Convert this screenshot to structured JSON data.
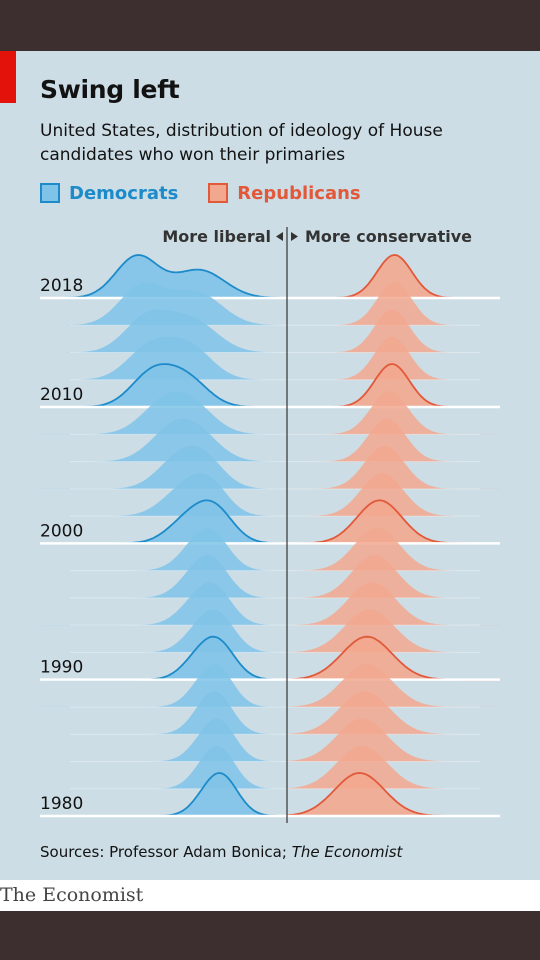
{
  "header": {
    "title": "Swing left",
    "subtitle": "United States, distribution of ideology of House candidates who won their primaries"
  },
  "legend": {
    "democrats": "Democrats",
    "republicans": "Republicans"
  },
  "source": {
    "prefix": "Sources: Professor Adam Bonica; ",
    "publication": "The Economist"
  },
  "brand": "The Economist",
  "colors": {
    "dem_fill": "#7fc3e8",
    "dem_line": "#1d8bc9",
    "rep_fill": "#f2a88f",
    "rep_line": "#e2593a",
    "background": "#ccdde6"
  },
  "chart_data": {
    "type": "area",
    "subtype": "ridgeline",
    "axis_left_label": "More liberal",
    "axis_right_label": "More conservative",
    "x_range": [
      -1,
      1
    ],
    "x_center": 0,
    "year_labels": [
      "2018",
      "2010",
      "2000",
      "1990",
      "1980"
    ],
    "years": [
      2018,
      2016,
      2014,
      2012,
      2010,
      2008,
      2006,
      2004,
      2002,
      2000,
      1998,
      1996,
      1994,
      1992,
      1990,
      1988,
      1986,
      1984,
      1982,
      1980
    ],
    "series": [
      {
        "name": "Democrats",
        "components": [
          {
            "center": [
              -0.6,
              -0.58,
              -0.56,
              -0.55,
              -0.54,
              -0.5,
              -0.47,
              -0.44,
              -0.42,
              -0.4,
              -0.38,
              -0.38,
              -0.38,
              -0.37,
              -0.37,
              -0.36,
              -0.35,
              -0.35,
              -0.34,
              -0.33
            ],
            "sd": [
              0.085,
              0.09,
              0.09,
              0.09,
              0.085,
              0.09,
              0.09,
              0.085,
              0.085,
              0.08,
              0.07,
              0.07,
              0.07,
              0.065,
              0.065,
              0.06,
              0.06,
              0.06,
              0.06,
              0.06
            ],
            "weight": [
              0.6,
              0.55,
              0.52,
              0.5,
              0.55,
              0.5,
              0.5,
              0.5,
              0.45,
              0.4,
              0.3,
              0.3,
              0.3,
              0.25,
              0.25,
              0.2,
              0.2,
              0.2,
              0.2,
              0.2
            ]
          },
          {
            "center": [
              -0.35,
              -0.36,
              -0.38,
              -0.39,
              -0.4,
              -0.38,
              -0.36,
              -0.33,
              -0.31,
              -0.29,
              -0.3,
              -0.3,
              -0.29,
              -0.28,
              -0.28,
              -0.28,
              -0.28,
              -0.27,
              -0.27,
              -0.26
            ],
            "sd": [
              0.1,
              0.1,
              0.1,
              0.09,
              0.085,
              0.09,
              0.09,
              0.08,
              0.075,
              0.075,
              0.07,
              0.07,
              0.07,
              0.07,
              0.07,
              0.065,
              0.065,
              0.065,
              0.065,
              0.065
            ],
            "weight": [
              0.4,
              0.45,
              0.48,
              0.5,
              0.45,
              0.5,
              0.5,
              0.5,
              0.55,
              0.6,
              0.7,
              0.7,
              0.7,
              0.75,
              0.75,
              0.8,
              0.8,
              0.8,
              0.8,
              0.8
            ]
          }
        ]
      },
      {
        "name": "Republicans",
        "components": [
          {
            "center": [
              0.43,
              0.43,
              0.42,
              0.42,
              0.42,
              0.41,
              0.4,
              0.39,
              0.38,
              0.37,
              0.36,
              0.35,
              0.34,
              0.33,
              0.32,
              0.32,
              0.31,
              0.3,
              0.3,
              0.29
            ],
            "sd": [
              0.07,
              0.07,
              0.07,
              0.07,
              0.07,
              0.075,
              0.075,
              0.08,
              0.085,
              0.09,
              0.09,
              0.09,
              0.095,
              0.1,
              0.1,
              0.1,
              0.1,
              0.1,
              0.1,
              0.1
            ],
            "weight": [
              1,
              1,
              1,
              1,
              1,
              1,
              1,
              1,
              1,
              1,
              1,
              1,
              1,
              1,
              1,
              1,
              1,
              1,
              1,
              1
            ]
          }
        ]
      }
    ]
  }
}
